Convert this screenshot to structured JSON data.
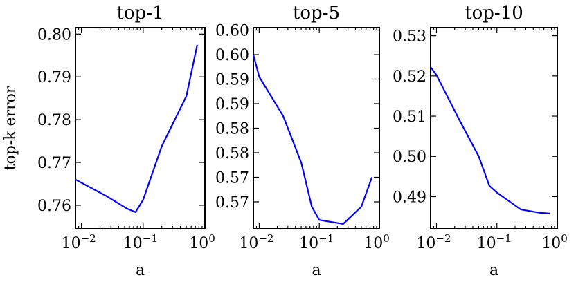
{
  "chart_data": [
    {
      "type": "line",
      "title": "top-1",
      "xlabel": "a",
      "ylabel": "top-k error",
      "xscale": "log",
      "xlim": [
        0.008,
        1.0
      ],
      "ylim": [
        0.7545,
        0.8015
      ],
      "xticks": [
        0.01,
        0.1,
        1
      ],
      "xtick_labels": [
        "10",
        "10",
        "10"
      ],
      "xtick_exponents": [
        "−2",
        "−1",
        "0"
      ],
      "yticks": [
        0.76,
        0.77,
        0.78,
        0.79,
        0.8
      ],
      "ytick_labels": [
        "0.76",
        "0.77",
        "0.78",
        "0.79",
        "0.80"
      ],
      "grid": false,
      "line_color": "#0000ff",
      "x": [
        0.008,
        0.025,
        0.055,
        0.075,
        0.1,
        0.2,
        0.5,
        0.75
      ],
      "y": [
        0.766,
        0.7622,
        0.7592,
        0.7584,
        0.7613,
        0.7738,
        0.7855,
        0.7975
      ]
    },
    {
      "type": "line",
      "title": "top-5",
      "xlabel": "a",
      "ylabel": "",
      "xscale": "log",
      "xlim": [
        0.008,
        1.0
      ],
      "ylim": [
        0.5645,
        0.6055
      ],
      "xticks": [
        0.01,
        0.1,
        1
      ],
      "xtick_labels": [
        "10",
        "10",
        "10"
      ],
      "xtick_exponents": [
        "−2",
        "−1",
        "0"
      ],
      "yticks": [
        0.57,
        0.575,
        0.58,
        0.585,
        0.59,
        0.595,
        0.6,
        0.605
      ],
      "ytick_labels": [
        "0.57",
        "0.57",
        "0.58",
        "0.58",
        "0.59",
        "0.59",
        "0.60",
        "0.60"
      ],
      "grid": false,
      "line_color": "#0000ff",
      "x": [
        0.008,
        0.01,
        0.025,
        0.05,
        0.075,
        0.1,
        0.25,
        0.5,
        0.75
      ],
      "y": [
        0.6,
        0.5955,
        0.5875,
        0.578,
        0.569,
        0.5663,
        0.5655,
        0.569,
        0.575
      ]
    },
    {
      "type": "line",
      "title": "top-10",
      "xlabel": "a",
      "ylabel": "",
      "xscale": "log",
      "xlim": [
        0.008,
        1.0
      ],
      "ylim": [
        0.482,
        0.532
      ],
      "xticks": [
        0.01,
        0.1,
        1
      ],
      "xtick_labels": [
        "10",
        "10",
        "10"
      ],
      "xtick_exponents": [
        "−2",
        "−1",
        "0"
      ],
      "yticks": [
        0.49,
        0.5,
        0.51,
        0.52,
        0.53
      ],
      "ytick_labels": [
        "0.49",
        "0.50",
        "0.51",
        "0.52",
        "0.53"
      ],
      "grid": false,
      "line_color": "#0000ff",
      "x": [
        0.008,
        0.01,
        0.025,
        0.05,
        0.075,
        0.1,
        0.25,
        0.5,
        0.75
      ],
      "y": [
        0.5222,
        0.5202,
        0.5085,
        0.5,
        0.4927,
        0.491,
        0.4868,
        0.486,
        0.4858
      ]
    }
  ]
}
